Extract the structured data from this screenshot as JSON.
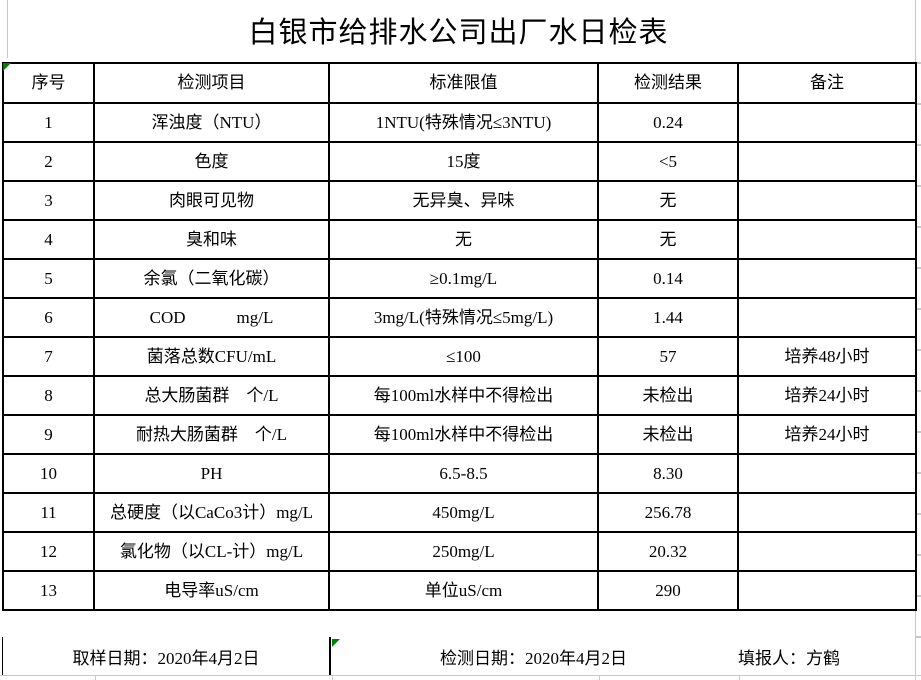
{
  "title": "白银市给排水公司出厂水日检表",
  "table": {
    "headers": [
      "序号",
      "检测项目",
      "标准限值",
      "检测结果",
      "备注"
    ],
    "rows": [
      [
        "1",
        "浑浊度（NTU）",
        "1NTU(特殊情况≤3NTU)",
        "0.24",
        ""
      ],
      [
        "2",
        "色度",
        "15度",
        "<5",
        ""
      ],
      [
        "3",
        "肉眼可见物",
        "无异臭、异味",
        "无",
        ""
      ],
      [
        "4",
        "臭和味",
        "无",
        "无",
        ""
      ],
      [
        "5",
        "余氯（二氧化碳）",
        "≥0.1mg/L",
        "0.14",
        ""
      ],
      [
        "6",
        "COD　　　mg/L",
        "3mg/L(特殊情况≤5mg/L)",
        "1.44",
        ""
      ],
      [
        "7",
        "菌落总数CFU/mL",
        "≤100",
        "57",
        "培养48小时"
      ],
      [
        "8",
        "总大肠菌群　个/L",
        "每100ml水样中不得检出",
        "未检出",
        "培养24小时"
      ],
      [
        "9",
        "耐热大肠菌群　个/L",
        "每100ml水样中不得检出",
        "未检出",
        "培养24小时"
      ],
      [
        "10",
        "PH",
        "6.5-8.5",
        "8.30",
        ""
      ],
      [
        "11",
        "总硬度（以CaCo3计）mg/L",
        "450mg/L",
        "256.78",
        ""
      ],
      [
        "12",
        "氯化物（以CL-计）mg/L",
        "250mg/L",
        "20.32",
        ""
      ],
      [
        "13",
        "电导率uS/cm",
        "单位uS/cm",
        "290",
        ""
      ]
    ]
  },
  "footer": {
    "sample_date": "取样日期：2020年4月2日",
    "test_date": "检测日期：2020年4月2日",
    "reporter": "填报人：方鹤"
  }
}
